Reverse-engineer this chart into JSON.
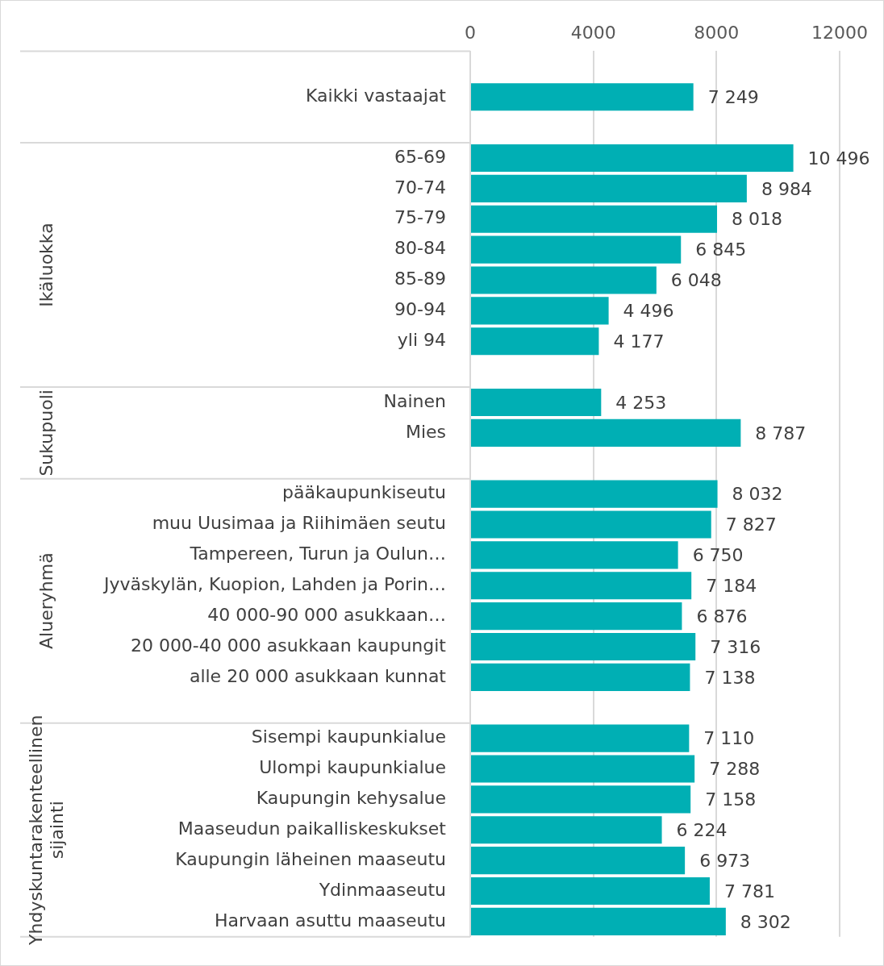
{
  "chart_data": {
    "type": "bar",
    "orientation": "horizontal",
    "color": "#00afb4",
    "grid": "x",
    "legend": false,
    "categories": [
      null,
      "Kaikki vastaajat",
      null,
      "65-69",
      "70-74",
      "75-79",
      "80-84",
      "85-89",
      "90-94",
      "yli 94",
      null,
      "Nainen",
      "Mies",
      null,
      "pääkaupunkiseutu",
      "muu Uusimaa ja Riihimäen seutu",
      "Tampereen, Turun ja Oulun…",
      "Jyväskylän, Kuopion, Lahden ja Porin…",
      "40 000-90 000 asukkaan…",
      "20 000-40 000 asukkaan kaupungit",
      "alle 20 000 asukkaan kunnat",
      null,
      "Sisempi kaupunkialue",
      "Ulompi kaupunkialue",
      "Kaupungin kehysalue",
      "Maaseudun paikalliskeskukset",
      "Kaupungin läheinen maaseutu",
      "Ydinmaaseutu",
      "Harvaan asuttu maaseutu"
    ],
    "values": [
      null,
      7249,
      null,
      10496,
      8984,
      8018,
      6845,
      6048,
      4496,
      4177,
      null,
      4253,
      8787,
      null,
      8032,
      7827,
      6750,
      7184,
      6876,
      7316,
      7138,
      null,
      7110,
      7288,
      7158,
      6224,
      6973,
      7781,
      8302
    ],
    "value_labels": [
      null,
      "7 249",
      null,
      "10 496",
      "8 984",
      "8 018",
      "6 845",
      "6 048",
      "4 496",
      "4 177",
      null,
      "4 253",
      "8 787",
      null,
      "8 032",
      "7 827",
      "6 750",
      "7 184",
      "6 876",
      "7 316",
      "7 138",
      null,
      "7 110",
      "7 288",
      "7 158",
      "6 224",
      "6 973",
      "7 781",
      "8 302"
    ],
    "xlim": [
      0,
      12000
    ],
    "xticks": [
      0,
      4000,
      8000,
      12000
    ],
    "annotations": [
      "Ikäluokka",
      "Sukupuoli",
      "Alueryhmä",
      "Yhdyskuntarakenteellinen sijainti"
    ]
  }
}
